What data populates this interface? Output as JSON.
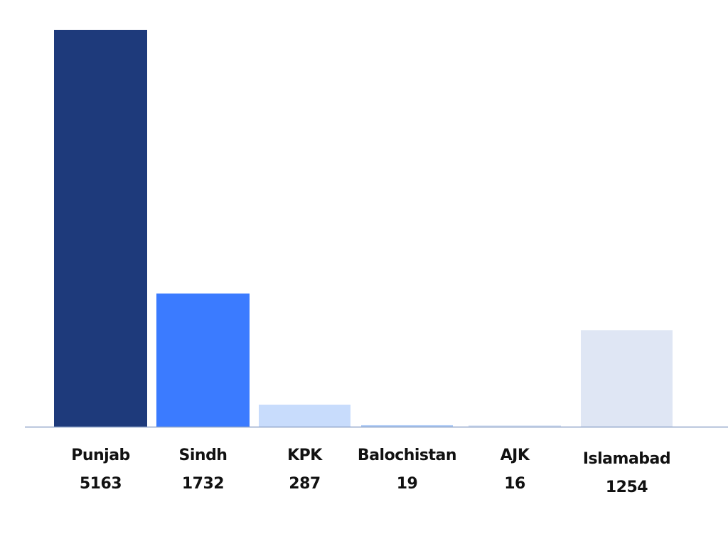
{
  "chart_data": {
    "type": "bar",
    "categories": [
      "Punjab",
      "Sindh",
      "KPK",
      "Balochistan",
      "AJK",
      "Islamabad"
    ],
    "values": [
      5163,
      1732,
      287,
      19,
      16,
      1254
    ],
    "colors": [
      "#1e3a7b",
      "#3b7bff",
      "#c8dcfc",
      "#a9c8f5",
      "#d6e1f3",
      "#dfe6f4"
    ]
  }
}
